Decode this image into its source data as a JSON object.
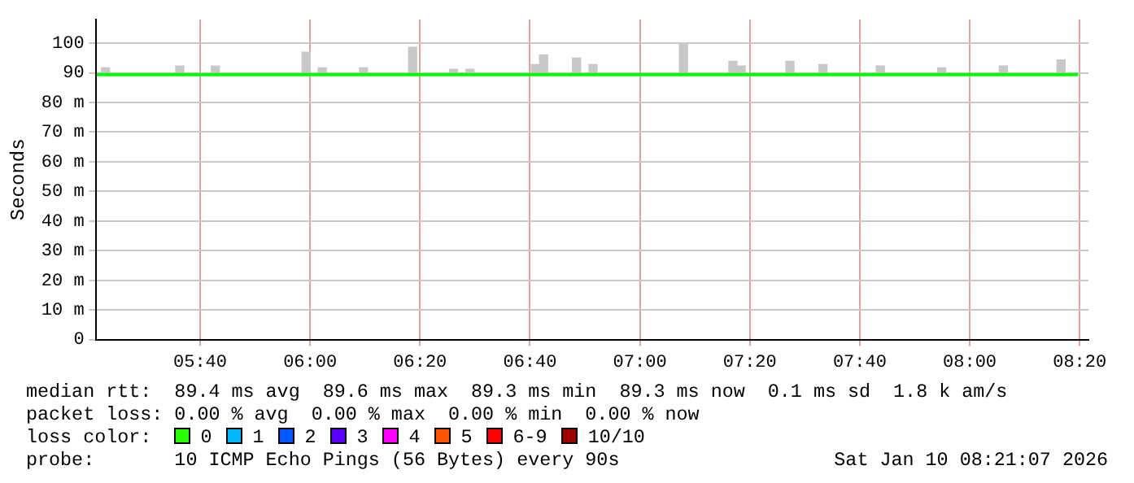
{
  "chart_data": {
    "type": "line",
    "ylabel": "Seconds",
    "xlim": [
      5.35,
      8.36
    ],
    "xticks": [
      {
        "value": 5.6667,
        "label": "05:40"
      },
      {
        "value": 6,
        "label": "06:00"
      },
      {
        "value": 6.3333,
        "label": "06:20"
      },
      {
        "value": 6.6667,
        "label": "06:40"
      },
      {
        "value": 7,
        "label": "07:00"
      },
      {
        "value": 7.3333,
        "label": "07:20"
      },
      {
        "value": 7.6667,
        "label": "07:40"
      },
      {
        "value": 8,
        "label": "08:00"
      },
      {
        "value": 8.3333,
        "label": "08:20"
      }
    ],
    "ylim": [
      0,
      108
    ],
    "yticks": [
      0,
      {
        "value": 10,
        "label": "10 m"
      },
      {
        "value": 20,
        "label": "20 m"
      },
      {
        "value": 30,
        "label": "30 m"
      },
      {
        "value": 40,
        "label": "40 m"
      },
      {
        "value": 50,
        "label": "50 m"
      },
      {
        "value": 60,
        "label": "60 m"
      },
      {
        "value": 70,
        "label": "70 m"
      },
      {
        "value": 80,
        "label": "80 m"
      },
      90,
      100
    ],
    "grid": true,
    "legend": false,
    "series": [
      {
        "type": "bar",
        "color": "#c8c8c8",
        "x": [
          5.38,
          5.605,
          5.713,
          5.988,
          6.037,
          6.162,
          6.311,
          6.435,
          6.485,
          6.683,
          6.708,
          6.808,
          6.858,
          7.132,
          7.282,
          7.307,
          7.455,
          7.555,
          7.729,
          7.915,
          8.102,
          8.277
        ],
        "base": [
          89.4,
          89.4,
          89.4,
          89.4,
          89.4,
          89.4,
          89.4,
          89.4,
          89.4,
          89.4,
          89.4,
          89.4,
          89.4,
          89.4,
          89.4,
          89.4,
          89.4,
          89.4,
          89.4,
          89.4,
          89.4,
          89.4
        ],
        "values": [
          2.3,
          2.9,
          2.9,
          7.6,
          2.3,
          2.3,
          9.2,
          1.8,
          1.8,
          3.4,
          6.6,
          5.6,
          3.4,
          10.6,
          4.5,
          2.9,
          4.5,
          3.4,
          2.9,
          2.3,
          2.9,
          5
        ]
      },
      {
        "color": "#00ff00",
        "x": [
          5.353,
          8.328
        ],
        "values": [
          89.4,
          89.4
        ]
      }
    ],
    "annotations": [
      "median rtt:  89.4 ms avg  89.6 ms max  89.3 ms min  89.3 ms now  0.1 ms sd  1.8 k am/s",
      "packet loss: 0.00 % avg  0.00 % max  0.00 % min  0.00 % now",
      "loss color:",
      "0",
      "1",
      "2",
      "3",
      "4",
      "5",
      "6-9",
      "10/10",
      "probe:       10 ICMP Echo Pings (56 Bytes) every 90s",
      "Sat Jan 10 08:21:07 2026"
    ]
  }
}
